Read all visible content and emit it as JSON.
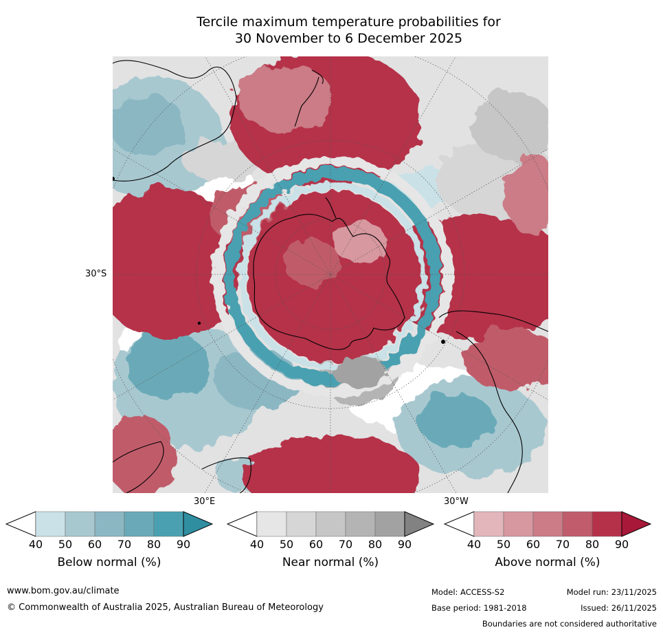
{
  "title": {
    "line1": "Tercile maximum temperature probabilities for",
    "line2": "30 November to 6 December 2025"
  },
  "map": {
    "lat_label": "30°S",
    "lon_labels": [
      "30°E",
      "30°W"
    ]
  },
  "colorbars": [
    {
      "label": "Below normal (%)",
      "ticks": [
        "40",
        "50",
        "60",
        "70",
        "80",
        "90"
      ],
      "colors": [
        "#ffffff",
        "#c9e1e7",
        "#a8c8d0",
        "#8bb7c3",
        "#6aaab8",
        "#4aa0b0",
        "#2f8fa1"
      ]
    },
    {
      "label": "Near normal (%)",
      "ticks": [
        "40",
        "50",
        "60",
        "70",
        "80",
        "90"
      ],
      "colors": [
        "#ffffff",
        "#e6e6e6",
        "#d6d6d6",
        "#c6c6c6",
        "#b4b4b4",
        "#a2a2a2",
        "#828282"
      ]
    },
    {
      "label": "Above normal (%)",
      "ticks": [
        "40",
        "50",
        "60",
        "70",
        "80",
        "90"
      ],
      "colors": [
        "#ffffff",
        "#e2b6bb",
        "#d7989f",
        "#cb7c86",
        "#c05c6b",
        "#b5314a",
        "#a81838"
      ]
    }
  ],
  "footer": {
    "website": "www.bom.gov.au/climate",
    "copyright": "© Commonwealth of Australia 2025, Australian Bureau of Meteorology",
    "model": "Model: ACCESS-S2",
    "base_period": "Base period: 1981-2018",
    "model_run": "Model run: 23/11/2025",
    "issued": "Issued: 26/11/2025",
    "disclaimer": "Boundaries are not considered authoritative"
  }
}
